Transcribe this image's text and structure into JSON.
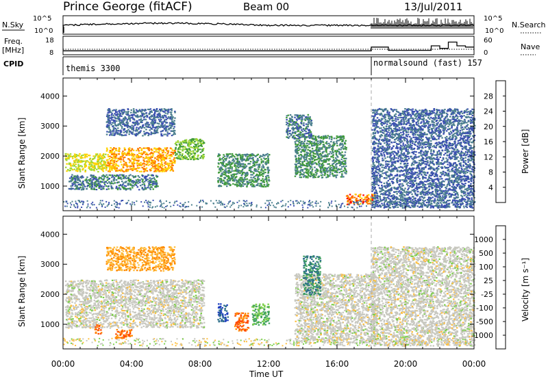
{
  "header": {
    "station": "Prince George (fitACF)",
    "beam": "Beam 00",
    "date": "13/Jul/2011"
  },
  "sky_panel": {
    "left_label": "N.Sky",
    "left_ticks": [
      "10^5",
      "10^0"
    ],
    "right_label": "N.Search",
    "right_ticks": [
      "10^5",
      "10^0"
    ]
  },
  "freq_panel": {
    "left_label_1": "Freq.",
    "left_label_2": "[MHz]",
    "left_ticks": [
      "18",
      "8"
    ],
    "right_label": "Nave",
    "right_ticks": [
      "60",
      "0"
    ]
  },
  "cpid_panel": {
    "label": "CPID",
    "mode_1": "themis 3300",
    "mode_2": "normalsound (fast) 157"
  },
  "power_panel": {
    "ylabel": "Slant Range [km]",
    "colorbar_label": "Power [dB]",
    "colorbar_ticks": [
      "28",
      "24",
      "20",
      "16",
      "12",
      "8",
      "4"
    ],
    "colorbar_colors": [
      "#ff0000",
      "#ff7a00",
      "#ffd200",
      "#9fd834",
      "#3f9a3a",
      "#4b7f8e",
      "#3a4fb0",
      "#1e1eff"
    ]
  },
  "velocity_panel": {
    "ylabel": "Slant Range [km]",
    "colorbar_label": "Velocity [m s⁻¹]",
    "colorbar_ticks": [
      "1000",
      "500",
      "100",
      "25",
      "-25",
      "-100",
      "-500",
      "-1000"
    ],
    "colorbar_colors": [
      "#1f3fbf",
      "#2e6f8a",
      "#3fa05f",
      "#7dd04a",
      "#c8c8c0",
      "#ffbf3f",
      "#ff8a00",
      "#ff4a00",
      "#ff0000"
    ]
  },
  "xaxis": {
    "label": "Time UT",
    "ticks": [
      "00:00",
      "04:00",
      "08:00",
      "12:00",
      "16:00",
      "20:00",
      "00:00"
    ]
  },
  "chart_data": {
    "type": "heatmap",
    "title": "Prince George (fitACF)",
    "xlabel": "Time UT",
    "ylabel": "Slant Range [km]",
    "x_range_hours": [
      0,
      24
    ],
    "ylim": [
      180,
      4600
    ],
    "y_ticks": [
      1000,
      2000,
      3000,
      4000
    ],
    "mode_change_hour": 18,
    "power_regions": [
      {
        "t0": 0.1,
        "t1": 2.5,
        "r0": 1500,
        "r1": 2100,
        "value": 20
      },
      {
        "t0": 2.5,
        "t1": 6.5,
        "r0": 1500,
        "r1": 2300,
        "value": 24
      },
      {
        "t0": 6.5,
        "t1": 8.2,
        "r0": 1900,
        "r1": 2600,
        "value": 16
      },
      {
        "t0": 2.5,
        "t1": 6.5,
        "r0": 2700,
        "r1": 3600,
        "value": 8
      },
      {
        "t0": 0.3,
        "t1": 5.5,
        "r0": 900,
        "r1": 1400,
        "value": 10
      },
      {
        "t0": 9.0,
        "t1": 12.0,
        "r0": 1000,
        "r1": 2100,
        "value": 12
      },
      {
        "t0": 13.5,
        "t1": 16.5,
        "r0": 1300,
        "r1": 2700,
        "value": 12
      },
      {
        "t0": 13.0,
        "t1": 14.5,
        "r0": 2600,
        "r1": 3400,
        "value": 10
      },
      {
        "t0": 16.5,
        "t1": 18.2,
        "r0": 400,
        "r1": 750,
        "value": 26
      },
      {
        "t0": 18.0,
        "t1": 24.0,
        "r0": 300,
        "r1": 3600,
        "value": 8
      }
    ],
    "velocity_regions": [
      {
        "t0": 0.1,
        "t1": 8.2,
        "r0": 900,
        "r1": 2500,
        "value": 0
      },
      {
        "t0": 2.5,
        "t1": 6.5,
        "r0": 2800,
        "r1": 3600,
        "value": -100
      },
      {
        "t0": 9.0,
        "t1": 9.6,
        "r0": 1100,
        "r1": 1700,
        "value": 1000
      },
      {
        "t0": 10.0,
        "t1": 10.8,
        "r0": 800,
        "r1": 1400,
        "value": -500
      },
      {
        "t0": 11.0,
        "t1": 12.0,
        "r0": 1000,
        "r1": 1700,
        "value": 100
      },
      {
        "t0": 13.5,
        "t1": 18.2,
        "r0": 400,
        "r1": 2700,
        "value": 0
      },
      {
        "t0": 14.0,
        "t1": 15.0,
        "r0": 2000,
        "r1": 3300,
        "value": 500
      },
      {
        "t0": 18.0,
        "t1": 24.0,
        "r0": 300,
        "r1": 3600,
        "value": 0
      },
      {
        "t0": 1.8,
        "t1": 2.2,
        "r0": 700,
        "r1": 1000,
        "value": -500
      },
      {
        "t0": 3.0,
        "t1": 4.0,
        "r0": 550,
        "r1": 850,
        "value": -500
      }
    ],
    "nave_steps": [
      {
        "t0": 0,
        "t1": 18.0,
        "value": 10
      },
      {
        "t0": 18.0,
        "t1": 19.0,
        "value": 25
      },
      {
        "t0": 19.0,
        "t1": 21.5,
        "value": 12
      },
      {
        "t0": 21.5,
        "t1": 22.0,
        "value": 30
      },
      {
        "t0": 22.0,
        "t1": 22.5,
        "value": 20
      },
      {
        "t0": 22.5,
        "t1": 23.0,
        "value": 45
      },
      {
        "t0": 23.0,
        "t1": 23.5,
        "value": 30
      },
      {
        "t0": 23.5,
        "t1": 24.0,
        "value": 25
      }
    ]
  }
}
